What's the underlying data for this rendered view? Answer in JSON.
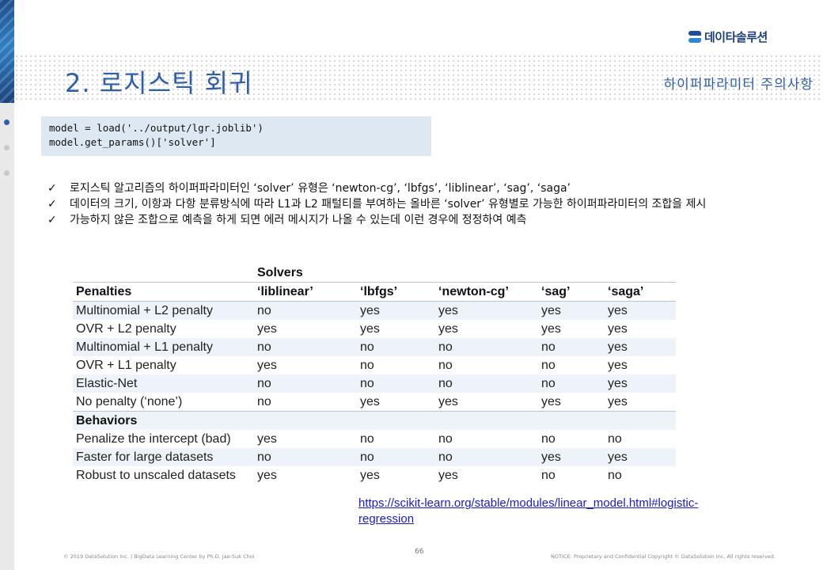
{
  "logo": {
    "text": "데이타솔루션"
  },
  "header": {
    "title": "2. 로지스틱 회귀",
    "subtitle": "하이퍼파라미터 주의사항"
  },
  "code": {
    "lines": [
      "model = load('../output/lgr.joblib')",
      "model.get_params()['solver']"
    ]
  },
  "bullets": {
    "check_glyph": "✓",
    "items": [
      "로지스틱 알고리즘의 하이퍼파라미터인 ‘solver’ 유형은 ‘newton-cg’, ‘lbfgs’, ‘liblinear’, ‘sag’, ‘saga’",
      "데이터의 크기, 이항과 다항 분류방식에 따라 L1과 L2 패털티를 부여하는 올바른 ‘solver’ 유형별로 가능한 하이퍼파라미터의 조합을 제시",
      "가능하지 않은 조합으로 예측을 하게 되면 에러 메시지가 나올 수 있는데 이런 경우에 정정하여 예측"
    ]
  },
  "table": {
    "solvers_label": "Solvers",
    "penalties_label": "Penalties",
    "behaviors_label": "Behaviors",
    "solvers": [
      "‘liblinear’",
      "‘lbfgs’",
      "‘newton-cg’",
      "‘sag’",
      "‘saga’"
    ],
    "penalty_rows": [
      {
        "label": "Multinomial + L2 penalty",
        "values": [
          "no",
          "yes",
          "yes",
          "yes",
          "yes"
        ]
      },
      {
        "label": "OVR + L2 penalty",
        "values": [
          "yes",
          "yes",
          "yes",
          "yes",
          "yes"
        ]
      },
      {
        "label": "Multinomial + L1 penalty",
        "values": [
          "no",
          "no",
          "no",
          "no",
          "yes"
        ]
      },
      {
        "label": "OVR + L1 penalty",
        "values": [
          "yes",
          "no",
          "no",
          "no",
          "yes"
        ]
      },
      {
        "label": "Elastic-Net",
        "values": [
          "no",
          "no",
          "no",
          "no",
          "yes"
        ]
      },
      {
        "label": "No penalty (‘none’)",
        "values": [
          "no",
          "yes",
          "yes",
          "yes",
          "yes"
        ]
      }
    ],
    "behavior_rows": [
      {
        "label": "Penalize the intercept (bad)",
        "values": [
          "yes",
          "no",
          "no",
          "no",
          "no"
        ]
      },
      {
        "label": "Faster for large datasets",
        "values": [
          "no",
          "no",
          "no",
          "yes",
          "yes"
        ]
      },
      {
        "label": "Robust to unscaled datasets",
        "values": [
          "yes",
          "yes",
          "yes",
          "no",
          "no"
        ]
      }
    ]
  },
  "reference": {
    "line1": "https://scikit-learn.org/stable/modules/linear_model.html#logistic-",
    "line2": "regression"
  },
  "footer": {
    "left": "© 2019 DataSolution Inc. | BigData Learning Center by Ph.D. Jae-Suk Choi",
    "page_number": "66",
    "right": "NOTICE: Proprietary and Confidential Copyright © DataSolution Inc. All rights reserved."
  }
}
